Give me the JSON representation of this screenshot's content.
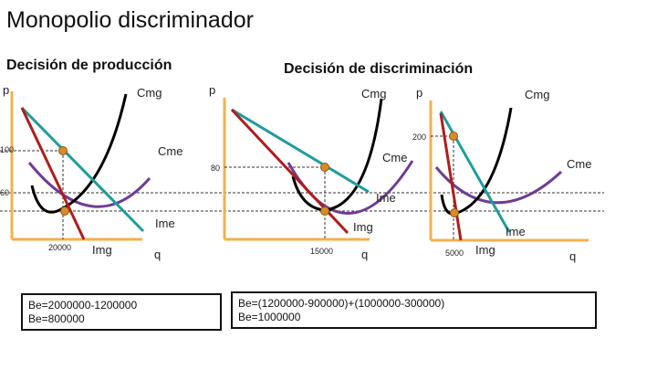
{
  "title": "Monopolio discriminador",
  "sections": {
    "production": "Decisión de producción",
    "discrimination": "Decisión de discriminación"
  },
  "axes": {
    "p": "p",
    "q": "q"
  },
  "labels": {
    "cmg": "Cmg",
    "cme": "Cme",
    "ime": "Ime",
    "img": "Img",
    "ime_m3": "Ime",
    "img_m3": "Img"
  },
  "ticks": {
    "price_100": "100",
    "price_80": "80",
    "price_60": "60",
    "price_200": "200",
    "q_20000": "20000",
    "q_15000": "15000",
    "q_5000": "5000"
  },
  "results": {
    "left": [
      "Be=2000000-1200000",
      "Be=800000"
    ],
    "right": [
      "Be=(1200000-900000)+(1000000-300000)",
      "Be=1000000"
    ]
  },
  "colors": {
    "axis": "#f2b14c",
    "demand": "#1f9c9c",
    "mr": "#b01c1c",
    "mc": "#000000",
    "ac": "#6f3b94",
    "point": "#d98b2b",
    "guide": "#333333"
  }
}
